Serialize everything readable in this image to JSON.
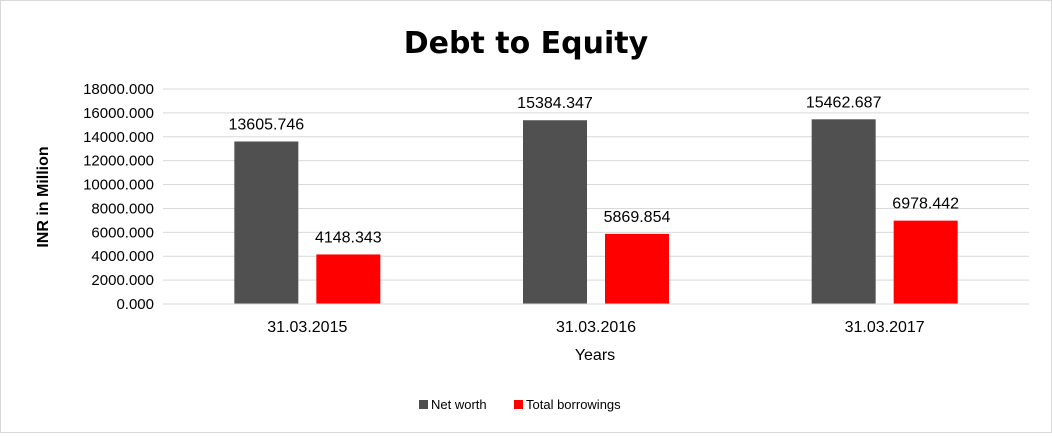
{
  "chart_data": {
    "type": "bar",
    "title": "Debt to Equity",
    "xlabel": "Years",
    "ylabel": "INR in Million",
    "categories": [
      "31.03.2015",
      "31.03.2016",
      "31.03.2017"
    ],
    "series": [
      {
        "name": "Net worth",
        "color": "#505050",
        "values": [
          13605.746,
          15384.347,
          15462.687
        ],
        "labels": [
          "13605.746",
          "15384.347",
          "15462.687"
        ]
      },
      {
        "name": "Total borrowings",
        "color": "#ff0000",
        "values": [
          4148.343,
          5869.854,
          6978.442
        ],
        "labels": [
          "4148.343",
          "5869.854",
          "6978.442"
        ]
      }
    ],
    "ylim": [
      0,
      18000
    ],
    "yticks": [
      0,
      2000,
      4000,
      6000,
      8000,
      10000,
      12000,
      14000,
      16000,
      18000
    ],
    "ytick_labels": [
      "0.000",
      "2000.000",
      "4000.000",
      "6000.000",
      "8000.000",
      "10000.000",
      "12000.000",
      "14000.000",
      "16000.000",
      "18000.000"
    ],
    "grid": true,
    "legend_position": "bottom"
  }
}
